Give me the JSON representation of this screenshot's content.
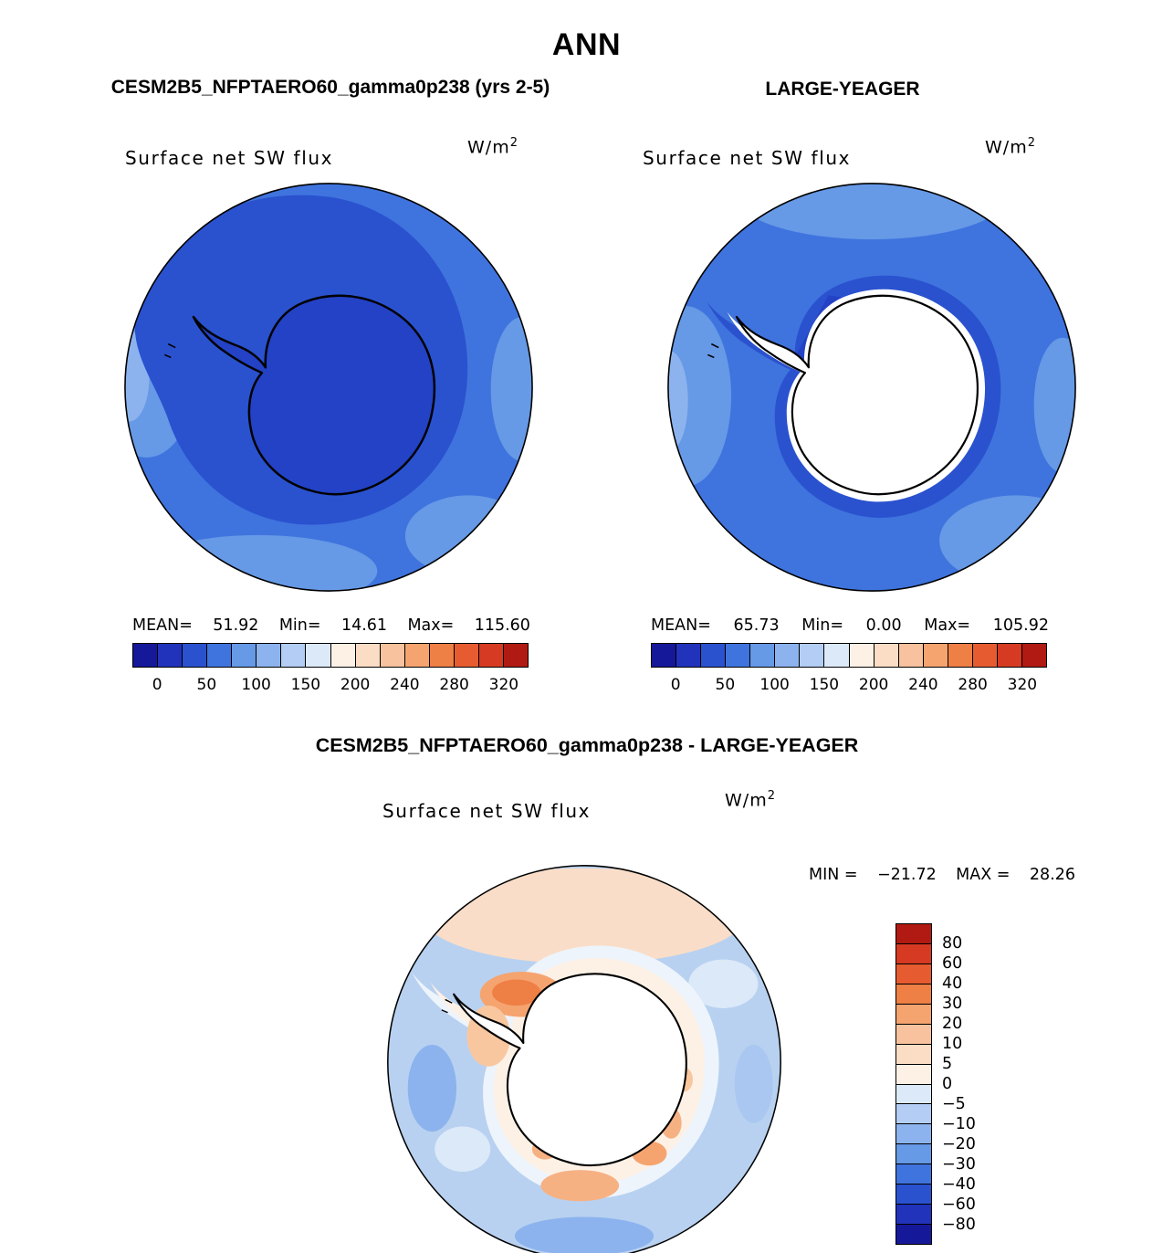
{
  "title": "ANN",
  "panels": [
    {
      "title": "CESM2B5_NFPTAERO60_gamma0p238 (yrs 2-5)",
      "field_label": "Surface net SW flux",
      "units_base": "W/m",
      "units_exp": "2",
      "stats": {
        "mean_label": "MEAN=",
        "mean": "51.92",
        "min_label": "Min=",
        "min": "14.61",
        "max_label": "Max=",
        "max": "115.60"
      },
      "colorbar_ticks": [
        "0",
        "50",
        "100",
        "150",
        "200",
        "240",
        "280",
        "320"
      ]
    },
    {
      "title": "LARGE-YEAGER",
      "field_label": "Surface net SW flux",
      "units_base": "W/m",
      "units_exp": "2",
      "stats": {
        "mean_label": "MEAN=",
        "mean": "65.73",
        "min_label": "Min=",
        "min": "0.00",
        "max_label": "Max=",
        "max": "105.92"
      },
      "colorbar_ticks": [
        "0",
        "50",
        "100",
        "150",
        "200",
        "240",
        "280",
        "320"
      ]
    }
  ],
  "diff_panel": {
    "title": "CESM2B5_NFPTAERO60_gamma0p238 - LARGE-YEAGER",
    "field_label": "Surface net SW flux",
    "units_base": "W/m",
    "units_exp": "2",
    "min_label": "MIN =",
    "min_value": "−21.72",
    "max_label": "MAX =",
    "max_value": "28.26",
    "colorbar_labels": [
      "80",
      "60",
      "40",
      "30",
      "20",
      "10",
      "5",
      "0",
      "−5",
      "−10",
      "−20",
      "−30",
      "−40",
      "−60",
      "−80"
    ]
  },
  "colors": {
    "colorbar_low_to_high": [
      "#16189a",
      "#2233bb",
      "#2a52cf",
      "#3f74de",
      "#6699e6",
      "#8cb3ee",
      "#b3cdf4",
      "#dce9f8",
      "#fdf1e6",
      "#fbdcc5",
      "#f8c29e",
      "#f5a470",
      "#ee7f45",
      "#e65c30",
      "#d63a22",
      "#b01a12"
    ],
    "map_ocean_blue": "#3f74de",
    "map_dark_blue": "#2a52cf",
    "map_continent_blue": "#2342c5",
    "diff_base_blue": "#b8d1f0",
    "continent_white": "#ffffff",
    "outline_black": "#000000"
  },
  "chart_data": [
    {
      "type": "heatmap",
      "subtype": "south-polar-stereographic-map",
      "season": "ANN",
      "title": "CESM2B5_NFPTAERO60_gamma0p238 (yrs 2-5)",
      "variable": "Surface net SW flux",
      "units": "W/m^2",
      "stats": {
        "mean": 51.92,
        "min": 14.61,
        "max": 115.6
      },
      "colorbar_ticks": [
        0,
        50,
        100,
        150,
        200,
        240,
        280,
        320
      ],
      "colorbar_orientation": "horizontal-bottom",
      "notes": "Antarctica and surrounding Southern Ocean shaded in blues (values roughly 15-115 W/m^2); continent outlined in black"
    },
    {
      "type": "heatmap",
      "subtype": "south-polar-stereographic-map",
      "season": "ANN",
      "title": "LARGE-YEAGER",
      "variable": "Surface net SW flux",
      "units": "W/m^2",
      "stats": {
        "mean": 65.73,
        "min": 0.0,
        "max": 105.92
      },
      "colorbar_ticks": [
        0,
        50,
        100,
        150,
        200,
        240,
        280,
        320
      ],
      "colorbar_orientation": "horizontal-bottom",
      "notes": "Ocean in blues, Antarctic continent masked white (no data / 0), darker blue band hugging the coast"
    },
    {
      "type": "heatmap",
      "subtype": "south-polar-stereographic-map",
      "season": "ANN",
      "title": "CESM2B5_NFPTAERO60_gamma0p238 - LARGE-YEAGER",
      "variable": "Surface net SW flux",
      "units": "W/m^2",
      "stats": {
        "min": -21.72,
        "max": 28.26
      },
      "colorbar_levels": [
        -80,
        -60,
        -40,
        -30,
        -20,
        -10,
        -5,
        0,
        5,
        10,
        20,
        30,
        40,
        60,
        80
      ],
      "colorbar_orientation": "vertical-right",
      "notes": "Difference map: pale blue ocean (negative bias), orange/red patches along the Antarctic coast and near the peninsula (positive bias), white continent"
    }
  ]
}
